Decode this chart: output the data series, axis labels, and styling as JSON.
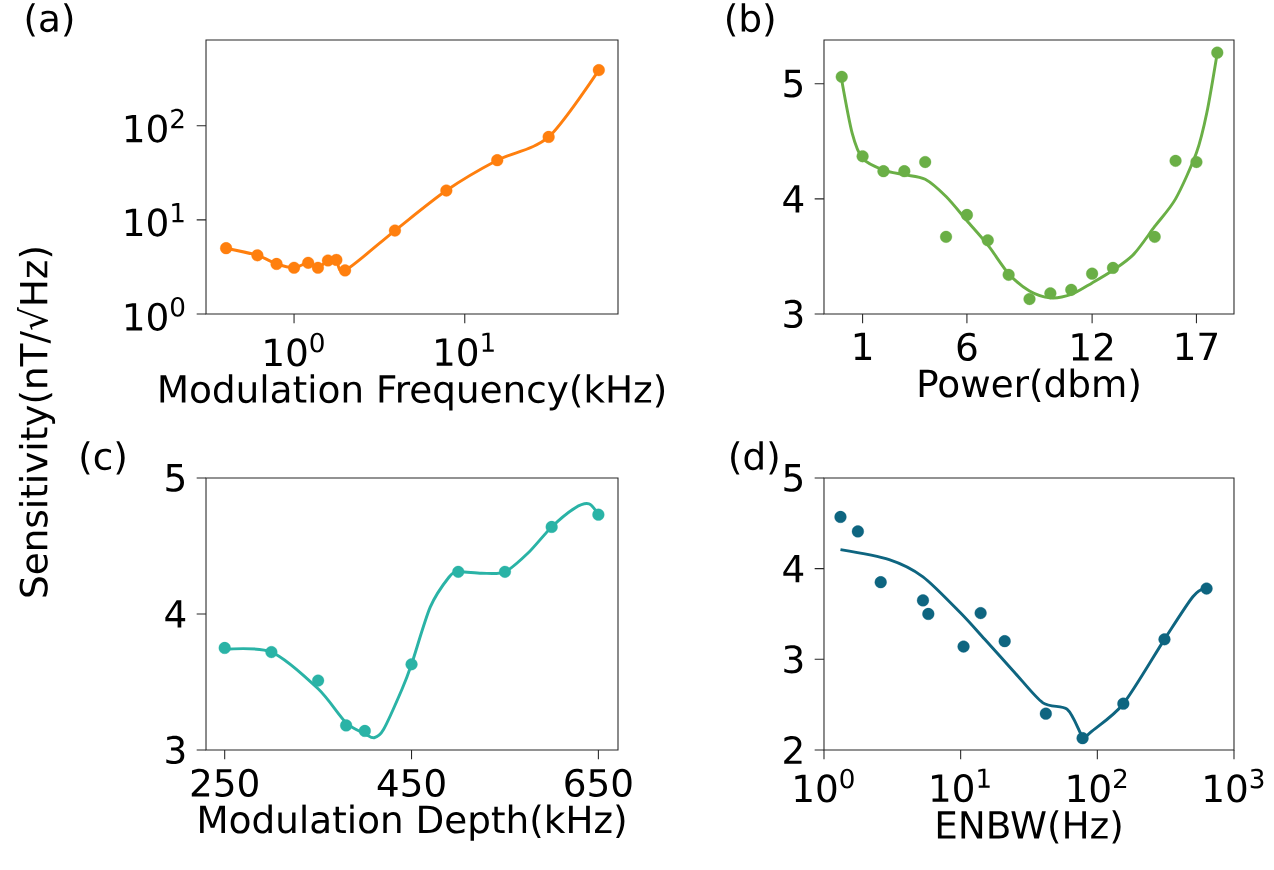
{
  "chart_data": [
    {
      "type": "line",
      "title": "(a)",
      "xlabel": "Modulation Frequency(kHz)",
      "ylabel": "Sensitivity(nT/√Hz)",
      "log": "xy",
      "xlim": [
        0.305,
        79
      ],
      "ylim": [
        1,
        815
      ],
      "xticks": [
        {
          "value": 1,
          "label": "10$^{0}$"
        },
        {
          "value": 10,
          "label": "10$^{1}$"
        }
      ],
      "yticks": [
        {
          "value": 1,
          "label": "10$^{0}$"
        },
        {
          "value": 10,
          "label": "10$^{1}$"
        },
        {
          "value": 100,
          "label": "10$^{2}$"
        }
      ],
      "series": [
        {
          "marker": "circle",
          "color": "#ff7f0e",
          "x": [
            0.4,
            0.61,
            0.79,
            1.0,
            1.21,
            1.38,
            1.58,
            1.77,
            1.99,
            3.9,
            7.8,
            15.5,
            31,
            61
          ],
          "values": [
            5.0,
            4.2,
            3.4,
            3.1,
            3.5,
            3.1,
            3.7,
            3.75,
            2.9,
            7.7,
            20.5,
            43,
            76,
            390
          ]
        }
      ]
    },
    {
      "type": "scatter",
      "title": "(b)",
      "xlabel": "Power(dbm)",
      "marker": "circle",
      "xlim": [
        -0.85,
        18.8
      ],
      "ylim": [
        3,
        5.38
      ],
      "xticks": [
        1,
        6,
        12,
        17
      ],
      "yticks": [
        3,
        4,
        5
      ],
      "series": [
        {
          "color": "#6aaf46",
          "x": [
            0,
            1,
            2,
            3,
            4,
            5,
            6,
            7,
            8,
            9,
            10,
            11,
            12,
            13,
            15,
            16,
            17,
            18
          ],
          "values": [
            5.06,
            4.37,
            4.24,
            4.24,
            4.32,
            3.67,
            3.86,
            3.64,
            3.34,
            3.13,
            3.18,
            3.21,
            3.35,
            3.4,
            3.67,
            4.33,
            4.32,
            5.27
          ]
        },
        {
          "type": "line",
          "marker": "none",
          "color": "#6aaf46",
          "x": [
            0,
            0.5,
            1,
            2,
            3,
            4,
            5,
            6,
            7,
            8,
            9,
            10,
            11,
            12,
            13,
            14,
            15,
            16,
            17,
            17.5,
            18
          ],
          "values": [
            5.03,
            4.57,
            4.35,
            4.25,
            4.21,
            4.17,
            4.02,
            3.81,
            3.6,
            3.35,
            3.2,
            3.14,
            3.17,
            3.27,
            3.38,
            3.52,
            3.76,
            4.0,
            4.4,
            4.75,
            5.27
          ]
        }
      ]
    },
    {
      "type": "scatter",
      "title": "(c)",
      "xlabel": "Modulation Depth(kHz)",
      "marker": "circle",
      "xlim": [
        230,
        671
      ],
      "ylim": [
        3,
        5
      ],
      "xticks": [
        250,
        450,
        650
      ],
      "yticks": [
        3,
        4,
        5
      ],
      "series": [
        {
          "color": "#2ab3a6",
          "x": [
            250,
            300,
            350,
            380,
            400,
            450,
            500,
            550,
            600,
            650
          ],
          "values": [
            3.75,
            3.72,
            3.51,
            3.18,
            3.14,
            3.63,
            4.31,
            4.31,
            4.64,
            4.73
          ]
        },
        {
          "type": "line",
          "marker": "none",
          "color": "#2ab3a6",
          "x": [
            250,
            300,
            350,
            380,
            400,
            410,
            420,
            440,
            450,
            470,
            490,
            500,
            525,
            550,
            575,
            600,
            625,
            640,
            650
          ],
          "values": [
            3.74,
            3.72,
            3.45,
            3.2,
            3.12,
            3.09,
            3.15,
            3.45,
            3.63,
            4.05,
            4.27,
            4.31,
            4.3,
            4.31,
            4.45,
            4.64,
            4.78,
            4.81,
            4.73
          ]
        }
      ]
    },
    {
      "type": "scatter",
      "title": "(d)",
      "xlabel": "ENBW(Hz)",
      "marker": "circle",
      "log": "x",
      "xlim": [
        1,
        1000
      ],
      "ylim": [
        2,
        5
      ],
      "xticks": [
        {
          "value": 1,
          "label": "10$^{0}$"
        },
        {
          "value": 10,
          "label": "10$^{1}$"
        },
        {
          "value": 100,
          "label": "10$^{2}$"
        },
        {
          "value": 1000,
          "label": "10$^{3}$"
        }
      ],
      "yticks": [
        2,
        3,
        4,
        5
      ],
      "series": [
        {
          "color": "#0e6580",
          "x": [
            1.32,
            1.77,
            2.6,
            5.3,
            5.8,
            10.5,
            14,
            21,
            42,
            78,
            155,
            310,
            630
          ],
          "values": [
            4.57,
            4.41,
            3.85,
            3.65,
            3.5,
            3.14,
            3.51,
            3.2,
            2.4,
            2.13,
            2.51,
            3.22,
            3.78
          ]
        },
        {
          "type": "line",
          "marker": "none",
          "color": "#0e6580",
          "x": [
            1.32,
            3,
            5.3,
            10,
            15,
            25,
            40,
            60,
            75,
            78,
            90,
            155,
            310,
            500,
            630
          ],
          "values": [
            4.21,
            4.1,
            3.91,
            3.51,
            3.22,
            2.85,
            2.52,
            2.45,
            2.19,
            2.12,
            2.2,
            2.51,
            3.22,
            3.69,
            3.79
          ]
        }
      ]
    }
  ]
}
